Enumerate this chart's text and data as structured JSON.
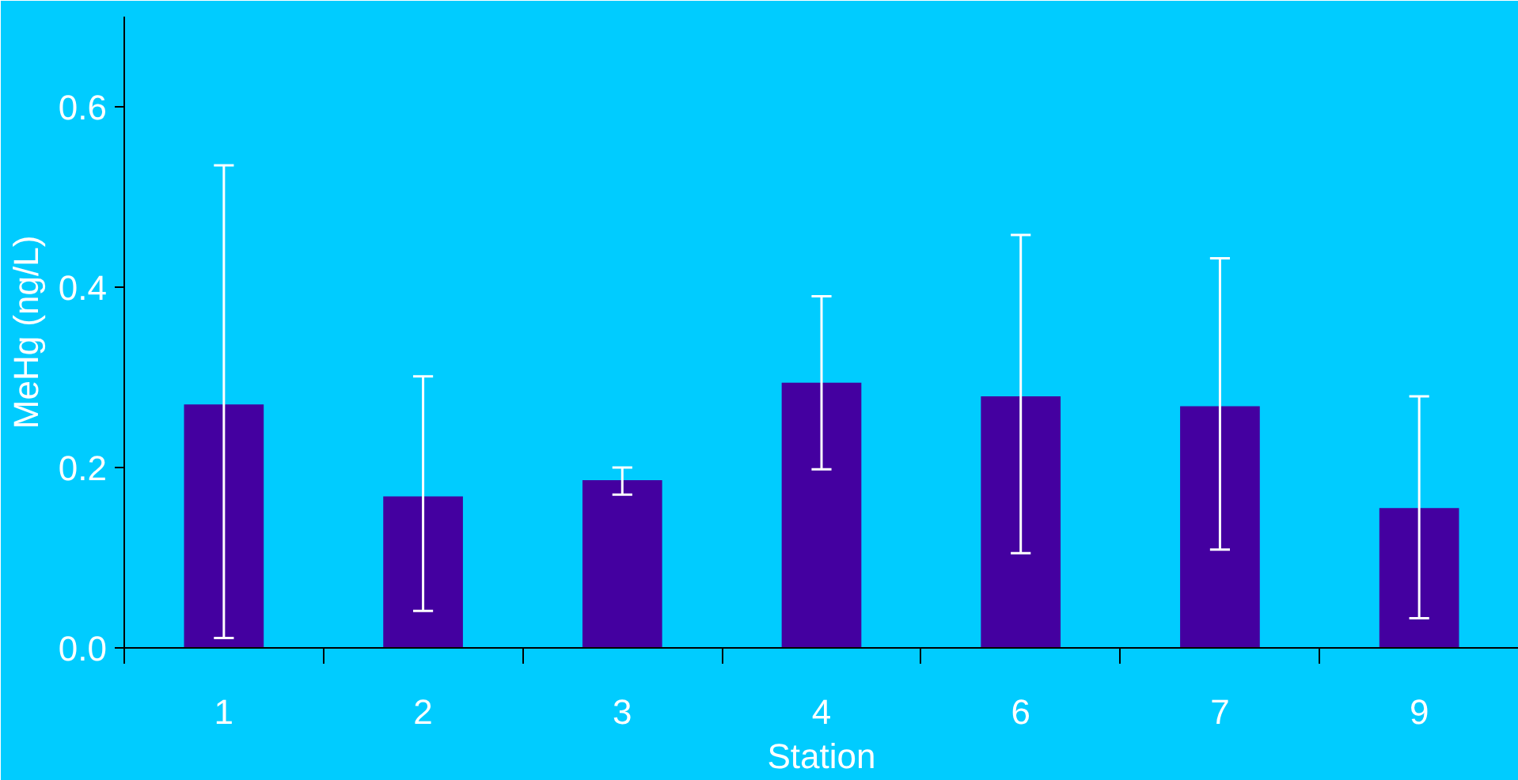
{
  "chart_data": {
    "type": "bar",
    "xlabel": "Station",
    "ylabel": "MeHg (ng/L)",
    "categories": [
      "1",
      "2",
      "3",
      "4",
      "6",
      "7",
      "9"
    ],
    "values": [
      0.27,
      0.168,
      0.186,
      0.294,
      0.279,
      0.268,
      0.155
    ],
    "errors": [
      [
        0.011,
        0.535
      ],
      [
        0.041,
        0.301
      ],
      [
        0.17,
        0.2
      ],
      [
        0.198,
        0.39
      ],
      [
        0.105,
        0.458
      ],
      [
        0.109,
        0.432
      ],
      [
        0.033,
        0.279
      ]
    ],
    "color": "#4400a0",
    "ylim": [
      0,
      0.7
    ],
    "yticks": [
      {
        "value": 0,
        "label": "0.0"
      },
      0.2,
      0.4,
      0.6
    ],
    "grid": false
  }
}
